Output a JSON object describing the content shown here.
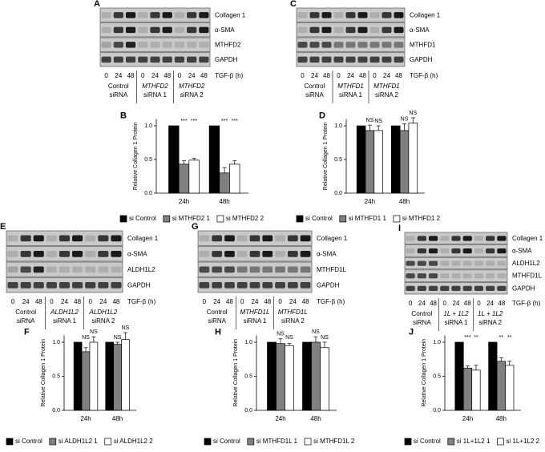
{
  "blots": [
    {
      "label": "A",
      "rows": [
        "Collagen 1",
        "α-SMA",
        "MTHFD2",
        "GAPDH"
      ],
      "lanes": [
        "0",
        "24",
        "48",
        "0",
        "24",
        "48",
        "0",
        "24",
        "48"
      ],
      "axis_label": "TGF-β (h)",
      "groups": [
        {
          "lines": [
            "Control",
            "siRNA"
          ]
        },
        {
          "lines": [
            "MTHFD2",
            "siRNA 1"
          ]
        },
        {
          "lines": [
            "MTHFD2",
            "siRNA 2"
          ]
        }
      ]
    },
    {
      "label": "C",
      "rows": [
        "Collagen 1",
        "α-SMA",
        "MTHFD1",
        "GAPDH"
      ],
      "lanes": [
        "0",
        "24",
        "48",
        "0",
        "24",
        "48",
        "0",
        "24",
        "48"
      ],
      "axis_label": "TGF-β (h)",
      "groups": [
        {
          "lines": [
            "Control",
            "siRNA"
          ]
        },
        {
          "lines": [
            "MTHFD1",
            "siRNA 1"
          ]
        },
        {
          "lines": [
            "MTHFD1",
            "siRNA 2"
          ]
        }
      ]
    },
    {
      "label": "E",
      "rows": [
        "Collagen 1",
        "α-SMA",
        "ALDH1L2",
        "GAPDH"
      ],
      "lanes": [
        "0",
        "24",
        "48",
        "0",
        "24",
        "48",
        "0",
        "24",
        "48"
      ],
      "axis_label": "TGF-β (h)",
      "groups": [
        {
          "lines": [
            "Control",
            "siRNA"
          ]
        },
        {
          "lines": [
            "ALDH1L2",
            "siRNA 1"
          ]
        },
        {
          "lines": [
            "ALDH1L2",
            "siRNA 2"
          ]
        }
      ]
    },
    {
      "label": "G",
      "rows": [
        "Collagen 1",
        "α-SMA",
        "MTHFD1L",
        "GAPDH"
      ],
      "lanes": [
        "0",
        "24",
        "48",
        "0",
        "24",
        "48",
        "0",
        "24",
        "48"
      ],
      "axis_label": "TGF-β (h)",
      "groups": [
        {
          "lines": [
            "Control",
            "siRNA"
          ]
        },
        {
          "lines": [
            "MTHFD1L",
            "siRNA 1"
          ]
        },
        {
          "lines": [
            "MTHFD1L",
            "siRNA 2"
          ]
        }
      ]
    },
    {
      "label": "I",
      "rows": [
        "Collagen 1",
        "α-SMA",
        "ALDH1L2",
        "MTHFD1L",
        "GAPDH"
      ],
      "lanes": [
        "0",
        "24",
        "48",
        "0",
        "24",
        "48",
        "0",
        "24",
        "48"
      ],
      "axis_label": "TGF-β (h)",
      "groups": [
        {
          "lines": [
            "Control",
            "siRNA"
          ]
        },
        {
          "lines": [
            "1L + 1L2",
            "siRNA 1"
          ]
        },
        {
          "lines": [
            "1L + 1L2",
            "siRNA 2"
          ]
        }
      ]
    }
  ],
  "chart_data": [
    {
      "type": "bar",
      "label": "B",
      "ylabel": "Relative Collagen 1 Protein",
      "categories": [
        "24h",
        "48h"
      ],
      "ylim": [
        0,
        1.1
      ],
      "yticks": [
        {
          "value": 0,
          "label": "0.0"
        },
        {
          "value": 0.5,
          "label": "0.5"
        },
        {
          "value": 1,
          "label": "1.0"
        }
      ],
      "series": [
        {
          "name": "si Control",
          "color": "#000000",
          "values": [
            1.0,
            1.0
          ]
        },
        {
          "name": "si MTHFD2 1",
          "color": "#808080",
          "values": [
            0.43,
            0.3
          ],
          "errors": [
            0.05,
            0.08
          ],
          "significance": [
            "***",
            "***"
          ]
        },
        {
          "name": "si MTHFD2 2",
          "color": "#ffffff",
          "values": [
            0.49,
            0.43
          ],
          "errors": [
            0.03,
            0.05
          ],
          "significance": [
            "***",
            "***"
          ]
        }
      ]
    },
    {
      "type": "bar",
      "label": "D",
      "ylabel": "Relative Collagen 1 Protein",
      "categories": [
        "24h",
        "48h"
      ],
      "ylim": [
        0,
        1.1
      ],
      "yticks": [
        {
          "value": 0,
          "label": "0.0"
        },
        {
          "value": 0.5,
          "label": "0.5"
        },
        {
          "value": 1,
          "label": "1.0"
        }
      ],
      "series": [
        {
          "name": "si Control",
          "color": "#000000",
          "values": [
            1.0,
            1.0
          ]
        },
        {
          "name": "si MTHFD1 1",
          "color": "#808080",
          "values": [
            0.93,
            0.93
          ],
          "errors": [
            0.08,
            0.1
          ],
          "significance": [
            "NS",
            "NS"
          ]
        },
        {
          "name": "si MTHFD1 2",
          "color": "#ffffff",
          "values": [
            0.93,
            1.04
          ],
          "errors": [
            0.07,
            0.08
          ],
          "significance": [
            "NS",
            "NS"
          ]
        }
      ]
    },
    {
      "type": "bar",
      "label": "F",
      "ylabel": "Relative Collagen 1 Protein",
      "categories": [
        "24h",
        "48h"
      ],
      "ylim": [
        0,
        1.1
      ],
      "yticks": [
        {
          "value": 0,
          "label": "0.0"
        },
        {
          "value": 0.5,
          "label": "0.5"
        },
        {
          "value": 1,
          "label": "1.0"
        }
      ],
      "series": [
        {
          "name": "si Control",
          "color": "#000000",
          "values": [
            1.0,
            1.0
          ]
        },
        {
          "name": "si ALDH1L2 1",
          "color": "#808080",
          "values": [
            0.86,
            0.97
          ],
          "errors": [
            0.06,
            0.03
          ],
          "significance": [
            "NS",
            "NS"
          ]
        },
        {
          "name": "si ALDH1L2 2",
          "color": "#ffffff",
          "values": [
            1.0,
            1.04
          ],
          "errors": [
            0.08,
            0.1
          ],
          "significance": [
            "NS",
            "NS"
          ]
        }
      ]
    },
    {
      "type": "bar",
      "label": "H",
      "ylabel": "Relative Collagen 1 Protein",
      "categories": [
        "24h",
        "48h"
      ],
      "ylim": [
        0,
        1.1
      ],
      "yticks": [
        {
          "value": 0,
          "label": "0.0"
        },
        {
          "value": 0.5,
          "label": "0.5"
        },
        {
          "value": 1,
          "label": "1.0"
        }
      ],
      "series": [
        {
          "name": "si Control",
          "color": "#000000",
          "values": [
            1.0,
            1.0
          ]
        },
        {
          "name": "si MTHFD1L 1",
          "color": "#808080",
          "values": [
            0.98,
            1.0
          ],
          "errors": [
            0.07,
            0.08
          ],
          "significance": [
            "NS",
            "NS"
          ]
        },
        {
          "name": "si MTHFD1L 2",
          "color": "#ffffff",
          "values": [
            0.95,
            0.92
          ],
          "errors": [
            0.03,
            0.08
          ],
          "significance": [
            "NS",
            "NS"
          ]
        }
      ]
    },
    {
      "type": "bar",
      "label": "J",
      "ylabel": "Relative Collagen 1 Protein",
      "categories": [
        "24h",
        "48h"
      ],
      "ylim": [
        0,
        1.1
      ],
      "yticks": [
        {
          "value": 0,
          "label": "0.0"
        },
        {
          "value": 0.5,
          "label": "0.5"
        },
        {
          "value": 1,
          "label": "1.0"
        }
      ],
      "series": [
        {
          "name": "si Control",
          "color": "#000000",
          "values": [
            1.0,
            1.0
          ]
        },
        {
          "name": "si 1L+1L2 1",
          "color": "#808080",
          "values": [
            0.62,
            0.72
          ],
          "errors": [
            0.03,
            0.05
          ],
          "significance": [
            "***",
            "**"
          ]
        },
        {
          "name": "si 1L+1L2 2",
          "color": "#ffffff",
          "values": [
            0.59,
            0.66
          ],
          "errors": [
            0.07,
            0.06
          ],
          "significance": [
            "**",
            "**"
          ]
        }
      ]
    }
  ]
}
